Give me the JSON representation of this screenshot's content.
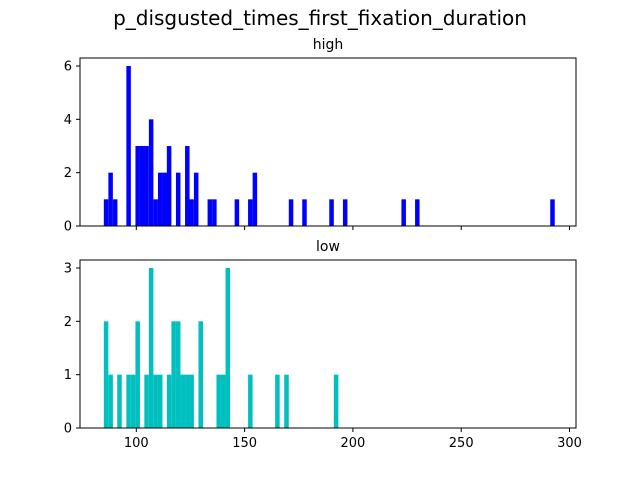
{
  "figure_title": "p_disgusted_times_first_fixation_duration",
  "chart_data": [
    {
      "type": "bar",
      "subtitle": "high",
      "color": "#0000ff",
      "xlim": [
        74,
        303
      ],
      "ylim": [
        0,
        6.3
      ],
      "yticks": [
        0,
        2,
        4,
        6
      ],
      "xticks": [
        100,
        150,
        200,
        250,
        300
      ],
      "show_xtick_labels": false,
      "bin_width": 2.08,
      "bins": [
        {
          "x": 85.0,
          "count": 1
        },
        {
          "x": 87.1,
          "count": 2
        },
        {
          "x": 89.2,
          "count": 1
        },
        {
          "x": 95.4,
          "count": 6
        },
        {
          "x": 99.6,
          "count": 3
        },
        {
          "x": 101.7,
          "count": 3
        },
        {
          "x": 103.7,
          "count": 3
        },
        {
          "x": 105.8,
          "count": 4
        },
        {
          "x": 107.9,
          "count": 1
        },
        {
          "x": 110.0,
          "count": 2
        },
        {
          "x": 112.1,
          "count": 2
        },
        {
          "x": 114.1,
          "count": 3
        },
        {
          "x": 118.3,
          "count": 2
        },
        {
          "x": 122.5,
          "count": 3
        },
        {
          "x": 124.5,
          "count": 1
        },
        {
          "x": 126.6,
          "count": 2
        },
        {
          "x": 132.9,
          "count": 1
        },
        {
          "x": 135.0,
          "count": 1
        },
        {
          "x": 145.4,
          "count": 1
        },
        {
          "x": 151.6,
          "count": 1
        },
        {
          "x": 153.7,
          "count": 2
        },
        {
          "x": 170.4,
          "count": 1
        },
        {
          "x": 176.6,
          "count": 1
        },
        {
          "x": 189.1,
          "count": 1
        },
        {
          "x": 195.4,
          "count": 1
        },
        {
          "x": 222.4,
          "count": 1
        },
        {
          "x": 228.7,
          "count": 1
        },
        {
          "x": 291.1,
          "count": 1
        }
      ]
    },
    {
      "type": "bar",
      "subtitle": "low",
      "color": "#00bfbf",
      "xlim": [
        74,
        303
      ],
      "ylim": [
        0,
        3.15
      ],
      "yticks": [
        0,
        1,
        2,
        3
      ],
      "xticks": [
        100,
        150,
        200,
        250,
        300
      ],
      "xtick_labels": [
        "100",
        "150",
        "200",
        "250",
        "300"
      ],
      "show_xtick_labels": true,
      "bin_width": 2.08,
      "bins": [
        {
          "x": 85.0,
          "count": 2
        },
        {
          "x": 87.1,
          "count": 1
        },
        {
          "x": 91.2,
          "count": 1
        },
        {
          "x": 95.4,
          "count": 1
        },
        {
          "x": 97.5,
          "count": 1
        },
        {
          "x": 99.6,
          "count": 2
        },
        {
          "x": 103.7,
          "count": 1
        },
        {
          "x": 105.8,
          "count": 3
        },
        {
          "x": 107.9,
          "count": 1
        },
        {
          "x": 110.0,
          "count": 1
        },
        {
          "x": 114.1,
          "count": 1
        },
        {
          "x": 116.2,
          "count": 2
        },
        {
          "x": 118.3,
          "count": 2
        },
        {
          "x": 120.4,
          "count": 1
        },
        {
          "x": 122.5,
          "count": 1
        },
        {
          "x": 124.5,
          "count": 1
        },
        {
          "x": 128.7,
          "count": 2
        },
        {
          "x": 137.0,
          "count": 1
        },
        {
          "x": 139.1,
          "count": 1
        },
        {
          "x": 141.2,
          "count": 3
        },
        {
          "x": 151.6,
          "count": 1
        },
        {
          "x": 164.1,
          "count": 1
        },
        {
          "x": 168.3,
          "count": 1
        },
        {
          "x": 191.2,
          "count": 1
        }
      ]
    }
  ]
}
